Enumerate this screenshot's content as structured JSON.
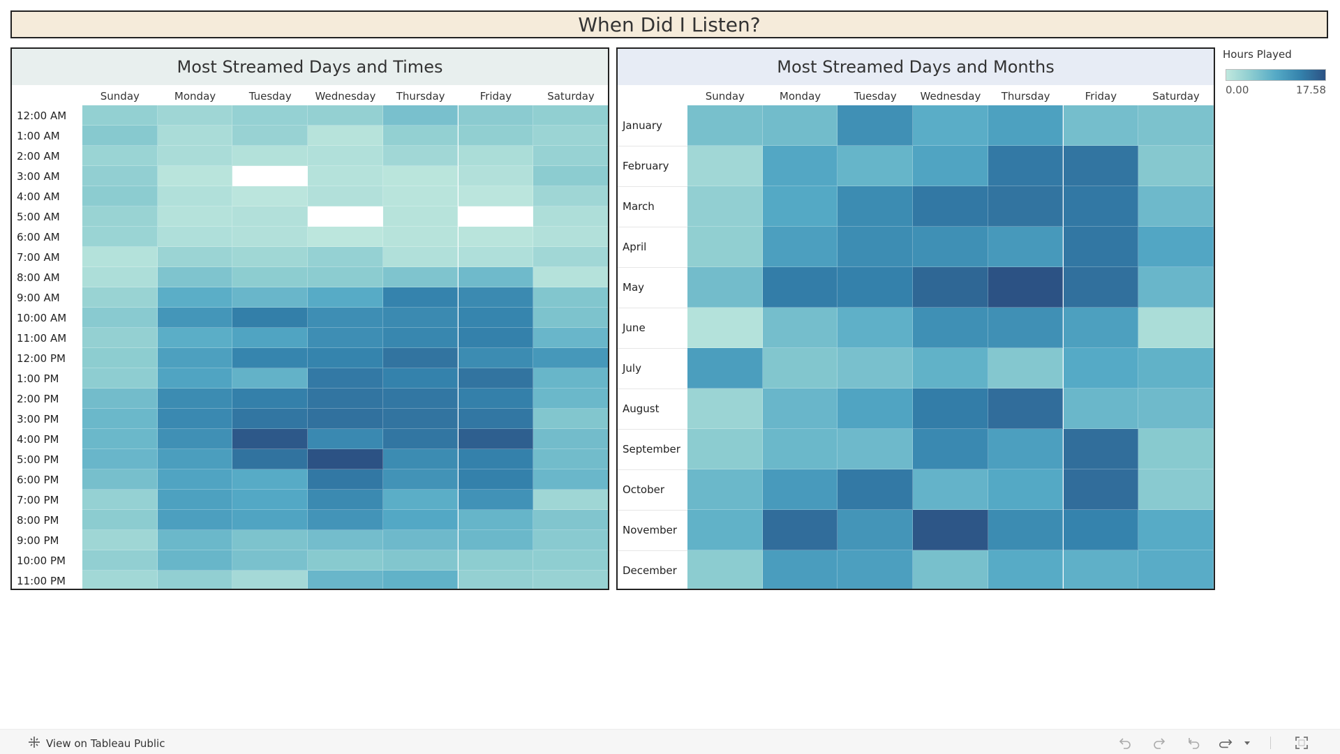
{
  "title": "When Did I Listen?",
  "legend": {
    "title": "Hours Played",
    "min_label": "0.00",
    "max_label": "17.58",
    "min": 0,
    "max": 17.58,
    "color_low": "#b8e3da",
    "color_high": "#2d5284"
  },
  "footer": {
    "link_label": "View on Tableau Public"
  },
  "chart_data": [
    {
      "type": "heatmap",
      "title": "Most Streamed Days and Times",
      "x": [
        "Sunday",
        "Monday",
        "Tuesday",
        "Wednesday",
        "Thursday",
        "Friday",
        "Saturday"
      ],
      "y": [
        "12:00 AM",
        "1:00 AM",
        "2:00 AM",
        "3:00 AM",
        "4:00 AM",
        "5:00 AM",
        "6:00 AM",
        "7:00 AM",
        "8:00 AM",
        "9:00 AM",
        "10:00 AM",
        "11:00 AM",
        "12:00 PM",
        "1:00 PM",
        "2:00 PM",
        "3:00 PM",
        "4:00 PM",
        "5:00 PM",
        "6:00 PM",
        "7:00 PM",
        "8:00 PM",
        "9:00 PM",
        "10:00 PM",
        "11:00 PM"
      ],
      "values": [
        [
          3.8,
          2.8,
          3.6,
          3.7,
          5.9,
          4.5,
          4.0
        ],
        [
          4.8,
          1.9,
          3.4,
          0.8,
          3.8,
          4.0,
          3.1
        ],
        [
          3.2,
          1.9,
          1.1,
          1.3,
          2.6,
          1.8,
          3.5
        ],
        [
          3.9,
          0.6,
          null,
          0.9,
          0.5,
          1.2,
          4.4
        ],
        [
          4.4,
          1.3,
          0.4,
          1.2,
          0.6,
          0.4,
          2.8
        ],
        [
          3.3,
          0.9,
          1.2,
          null,
          0.8,
          null,
          1.5
        ],
        [
          3.2,
          1.4,
          1.2,
          0.3,
          0.8,
          0.6,
          1.2
        ],
        [
          1.0,
          3.1,
          2.7,
          3.6,
          1.3,
          1.4,
          2.6
        ],
        [
          1.6,
          5.4,
          4.3,
          4.4,
          5.4,
          6.7,
          0.9
        ],
        [
          3.3,
          8.3,
          7.2,
          8.6,
          13.1,
          12.3,
          5.2
        ],
        [
          4.6,
          11.0,
          13.5,
          11.9,
          12.3,
          12.9,
          5.6
        ],
        [
          3.7,
          8.3,
          9.5,
          11.9,
          12.6,
          13.3,
          7.2
        ],
        [
          4.3,
          9.9,
          12.9,
          13.0,
          14.5,
          12.1,
          10.8
        ],
        [
          4.2,
          9.4,
          7.7,
          14.0,
          13.2,
          14.5,
          7.3
        ],
        [
          6.4,
          12.1,
          13.4,
          14.4,
          14.2,
          13.4,
          7.0
        ],
        [
          7.0,
          12.4,
          14.3,
          14.7,
          14.5,
          14.2,
          5.2
        ],
        [
          7.0,
          11.6,
          17.0,
          12.4,
          14.3,
          16.4,
          6.4
        ],
        [
          7.2,
          10.1,
          14.6,
          17.58,
          12.1,
          13.3,
          6.5
        ],
        [
          6.1,
          9.4,
          8.6,
          14.1,
          11.3,
          13.3,
          7.1
        ],
        [
          3.6,
          9.8,
          9.0,
          12.3,
          8.3,
          11.4,
          2.8
        ],
        [
          4.4,
          10.0,
          9.5,
          11.2,
          9.0,
          7.4,
          5.3
        ],
        [
          2.8,
          7.0,
          5.6,
          6.3,
          6.8,
          7.0,
          4.6
        ],
        [
          3.9,
          7.3,
          5.8,
          4.7,
          5.2,
          4.3,
          4.1
        ],
        [
          2.5,
          3.9,
          2.3,
          7.2,
          7.8,
          3.7,
          3.4
        ]
      ]
    },
    {
      "type": "heatmap",
      "title": "Most Streamed Days and Months",
      "x": [
        "Sunday",
        "Monday",
        "Tuesday",
        "Wednesday",
        "Thursday",
        "Friday",
        "Saturday"
      ],
      "y": [
        "January",
        "February",
        "March",
        "April",
        "May",
        "June",
        "July",
        "August",
        "September",
        "October",
        "November",
        "December"
      ],
      "values": [
        [
          6.0,
          6.5,
          11.6,
          8.4,
          9.8,
          6.2,
          5.7
        ],
        [
          2.6,
          9.1,
          7.4,
          9.4,
          14.0,
          14.4,
          4.9
        ],
        [
          3.9,
          8.9,
          12.1,
          14.1,
          14.5,
          14.1,
          6.8
        ],
        [
          4.0,
          10.0,
          12.0,
          11.7,
          10.7,
          14.2,
          9.2
        ],
        [
          6.4,
          13.6,
          13.3,
          15.7,
          17.58,
          14.8,
          7.2
        ],
        [
          1.0,
          6.2,
          8.0,
          11.7,
          11.6,
          9.9,
          1.8
        ],
        [
          10.1,
          5.2,
          5.9,
          7.8,
          5.0,
          8.8,
          7.8
        ],
        [
          3.1,
          7.2,
          9.4,
          13.6,
          15.1,
          7.1,
          6.7
        ],
        [
          4.4,
          7.0,
          6.8,
          12.4,
          10.0,
          15.0,
          4.7
        ],
        [
          7.0,
          10.5,
          14.0,
          7.6,
          8.9,
          15.1,
          4.6
        ],
        [
          7.8,
          15.1,
          11.1,
          17.2,
          12.1,
          13.1,
          8.6
        ],
        [
          4.4,
          10.2,
          10.0,
          6.0,
          8.6,
          8.0,
          8.5
        ]
      ]
    }
  ]
}
